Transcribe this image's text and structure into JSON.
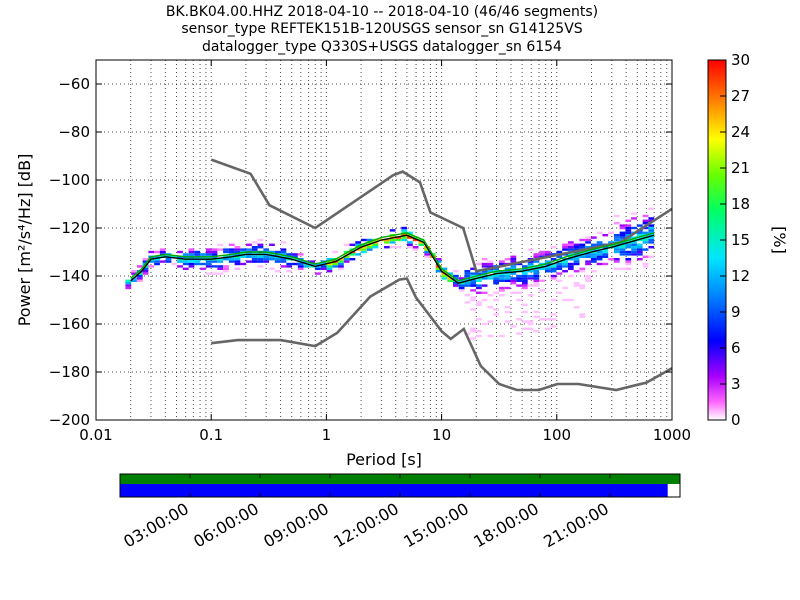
{
  "title_lines": [
    "BK.BK04.00.HHZ   2018-04-10 -- 2018-04-10  (46/46 segments)",
    "sensor_type REFTEK151B-120USGS sensor_sn G14125VS",
    "datalogger_type Q330S+USGS datalogger_sn 6154"
  ],
  "colorbar": {
    "label": "[%]",
    "ticks": [
      "0",
      "3",
      "6",
      "9",
      "12",
      "15",
      "18",
      "21",
      "24",
      "27",
      "30"
    ],
    "vmin": 0,
    "vmax": 30
  },
  "timeline": {
    "labels": [
      "03:00:00",
      "06:00:00",
      "09:00:00",
      "12:00:00",
      "15:00:00",
      "18:00:00",
      "21:00:00"
    ],
    "coverage_fraction": 0.978,
    "top_bar_color": "#008000",
    "bottom_bar_color": "#0000ff"
  },
  "chart_data": {
    "type": "heatmap",
    "xlabel": "Period [s]",
    "ylabel": "Power [m²/s⁴/Hz] [dB]",
    "x_scale": "log",
    "xlim": [
      0.01,
      1000
    ],
    "ylim": [
      -200,
      -50
    ],
    "x_ticks": [
      0.01,
      0.1,
      1,
      10,
      100,
      1000
    ],
    "x_tick_labels": [
      "0.01",
      "0.1",
      "1",
      "10",
      "100",
      "1000"
    ],
    "y_ticks": [
      -200,
      -180,
      -160,
      -140,
      -120,
      -100,
      -80,
      -60
    ],
    "y_tick_labels": [
      "−200",
      "−180",
      "−160",
      "−140",
      "−120",
      "−100",
      "−80",
      "−60"
    ],
    "grid": true,
    "series": [
      {
        "role": "noise-model-upper",
        "color": "#666666",
        "x": [
          0.1,
          0.22,
          0.32,
          0.8,
          3.8,
          4.6,
          6.5,
          8.0,
          15.4,
          20.0,
          354.8,
          1000
        ],
        "y": [
          -91.5,
          -97.4,
          -110.5,
          -120.0,
          -98.0,
          -96.5,
          -101.0,
          -113.5,
          -120.0,
          -138.0,
          -126.0,
          -112.0
        ]
      },
      {
        "role": "noise-model-lower",
        "color": "#666666",
        "x": [
          0.1,
          0.17,
          0.4,
          0.8,
          1.24,
          2.4,
          4.3,
          5.0,
          6.0,
          10.0,
          12.0,
          15.6,
          21.9,
          31.6,
          45.0,
          70.0,
          101.0,
          154.0,
          328.0,
          600.0,
          1000.0
        ],
        "y": [
          -168.0,
          -166.7,
          -166.7,
          -169.2,
          -163.7,
          -148.6,
          -141.5,
          -141.1,
          -149.0,
          -163.0,
          -166.2,
          -162.1,
          -177.5,
          -185.0,
          -187.5,
          -187.5,
          -185.0,
          -185.0,
          -187.5,
          -184.4,
          -178.4
        ]
      },
      {
        "role": "mode",
        "color": "#000000",
        "x": [
          0.02,
          0.025,
          0.03,
          0.04,
          0.06,
          0.1,
          0.15,
          0.2,
          0.3,
          0.5,
          0.8,
          1.2,
          2,
          3,
          5,
          7,
          10,
          14,
          20,
          30,
          50,
          80,
          120,
          200,
          300,
          500,
          700
        ],
        "y": [
          -142,
          -138,
          -133,
          -132,
          -133,
          -133,
          -132,
          -131,
          -131,
          -133,
          -136,
          -134,
          -128,
          -125,
          -123,
          -126,
          -138,
          -143,
          -141,
          -139,
          -138,
          -136,
          -133,
          -130,
          -128,
          -125,
          -123
        ]
      },
      {
        "role": "mean",
        "color": "#00aa00",
        "x": [
          0.02,
          0.025,
          0.03,
          0.04,
          0.06,
          0.1,
          0.15,
          0.2,
          0.3,
          0.5,
          0.8,
          1.2,
          2,
          3,
          5,
          7,
          10,
          14,
          20,
          30,
          50,
          80,
          120,
          200,
          300,
          500,
          700
        ],
        "y": [
          -141,
          -137,
          -132,
          -131,
          -132,
          -132,
          -131,
          -130,
          -130,
          -132,
          -135,
          -133,
          -127,
          -124,
          -122,
          -125,
          -137,
          -142,
          -140,
          -138,
          -137,
          -135,
          -132,
          -129,
          -127,
          -124,
          -122
        ]
      }
    ]
  }
}
